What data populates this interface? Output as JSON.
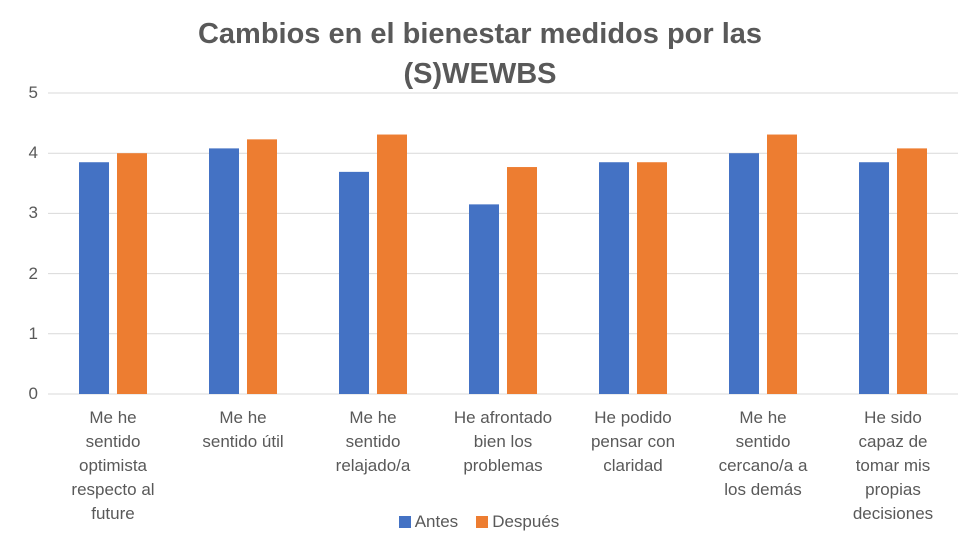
{
  "chart_data": {
    "type": "bar",
    "title": "Cambios en el bienestar medidos por las (S)WEWBS",
    "categories": [
      "Me he sentido optimista respecto al future",
      "Me he sentido útil",
      "Me he sentido relajado/a",
      "He afrontado bien los problemas",
      "He podido pensar con claridad",
      "Me he sentido cercano/a a los demás",
      "He sido capaz de tomar mis propias decisiones"
    ],
    "series": [
      {
        "name": "Antes",
        "color": "#4472c4",
        "values": [
          3.85,
          4.08,
          3.69,
          3.15,
          3.85,
          4.0,
          3.85
        ]
      },
      {
        "name": "Después",
        "color": "#ed7d31",
        "values": [
          4.0,
          4.23,
          4.31,
          3.77,
          3.85,
          4.31,
          4.08
        ]
      }
    ],
    "ylim": [
      0,
      5
    ],
    "yticks": [
      0,
      1,
      2,
      3,
      4,
      5
    ],
    "grid": true,
    "legend": "bottom"
  }
}
